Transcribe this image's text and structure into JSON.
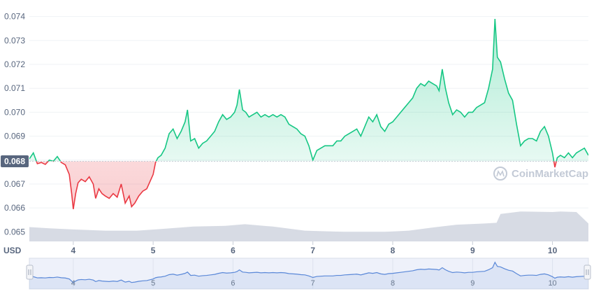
{
  "chart_data": {
    "type": "line",
    "unit_label": "USD",
    "current_price_label": "0.068",
    "current_price": 0.06795,
    "watermark": "CoinMarketCap",
    "yticks": [
      "0.065",
      "0.066",
      "0.067",
      "0.068",
      "0.069",
      "0.070",
      "0.071",
      "0.072",
      "0.073",
      "0.074"
    ],
    "ylim": [
      0.0646,
      0.0744
    ],
    "xticks": [
      "4",
      "5",
      "6",
      "7",
      "8",
      "9",
      "10"
    ],
    "xlim": [
      3.45,
      10.45
    ],
    "colors": {
      "up": "#16c784",
      "down": "#ea3943",
      "volume": "#d0d5df",
      "navigator": "#5a88d8"
    },
    "series": [
      {
        "values": [
          [
            3.45,
            0.06805
          ],
          [
            3.5,
            0.0683
          ],
          [
            3.55,
            0.06785
          ],
          [
            3.6,
            0.0679
          ],
          [
            3.65,
            0.06782
          ],
          [
            3.7,
            0.068
          ],
          [
            3.75,
            0.06795
          ],
          [
            3.8,
            0.06815
          ],
          [
            3.85,
            0.0679
          ],
          [
            3.9,
            0.0678
          ],
          [
            3.95,
            0.0674
          ],
          [
            3.98,
            0.0666
          ],
          [
            4.0,
            0.06595
          ],
          [
            4.03,
            0.0666
          ],
          [
            4.06,
            0.06705
          ],
          [
            4.1,
            0.0672
          ],
          [
            4.15,
            0.0671
          ],
          [
            4.2,
            0.0673
          ],
          [
            4.25,
            0.067
          ],
          [
            4.28,
            0.0664
          ],
          [
            4.32,
            0.0668
          ],
          [
            4.36,
            0.0666
          ],
          [
            4.4,
            0.0665
          ],
          [
            4.45,
            0.0664
          ],
          [
            4.5,
            0.0666
          ],
          [
            4.55,
            0.06645
          ],
          [
            4.6,
            0.067
          ],
          [
            4.65,
            0.0662
          ],
          [
            4.7,
            0.0665
          ],
          [
            4.73,
            0.06605
          ],
          [
            4.77,
            0.0662
          ],
          [
            4.82,
            0.0665
          ],
          [
            4.87,
            0.0667
          ],
          [
            4.92,
            0.0668
          ],
          [
            4.96,
            0.0671
          ],
          [
            5.0,
            0.0674
          ],
          [
            5.03,
            0.0679
          ],
          [
            5.06,
            0.0681
          ],
          [
            5.1,
            0.0682
          ],
          [
            5.15,
            0.0685
          ],
          [
            5.2,
            0.0691
          ],
          [
            5.25,
            0.0693
          ],
          [
            5.3,
            0.0689
          ],
          [
            5.35,
            0.0692
          ],
          [
            5.4,
            0.0696
          ],
          [
            5.43,
            0.0701
          ],
          [
            5.47,
            0.0688
          ],
          [
            5.52,
            0.0689
          ],
          [
            5.57,
            0.0685
          ],
          [
            5.62,
            0.0687
          ],
          [
            5.67,
            0.0688
          ],
          [
            5.72,
            0.069
          ],
          [
            5.77,
            0.0692
          ],
          [
            5.82,
            0.0696
          ],
          [
            5.87,
            0.0699
          ],
          [
            5.92,
            0.0697
          ],
          [
            5.97,
            0.0698
          ],
          [
            6.02,
            0.07
          ],
          [
            6.05,
            0.0703
          ],
          [
            6.08,
            0.07095
          ],
          [
            6.12,
            0.0701
          ],
          [
            6.16,
            0.07
          ],
          [
            6.2,
            0.0698
          ],
          [
            6.25,
            0.0699
          ],
          [
            6.3,
            0.07
          ],
          [
            6.35,
            0.0698
          ],
          [
            6.4,
            0.0699
          ],
          [
            6.45,
            0.0698
          ],
          [
            6.5,
            0.0699
          ],
          [
            6.55,
            0.0698
          ],
          [
            6.6,
            0.0699
          ],
          [
            6.65,
            0.0698
          ],
          [
            6.7,
            0.0695
          ],
          [
            6.75,
            0.0694
          ],
          [
            6.8,
            0.0693
          ],
          [
            6.85,
            0.0691
          ],
          [
            6.9,
            0.069
          ],
          [
            6.95,
            0.0686
          ],
          [
            7.0,
            0.068
          ],
          [
            7.05,
            0.0684
          ],
          [
            7.1,
            0.0685
          ],
          [
            7.15,
            0.0686
          ],
          [
            7.2,
            0.0686
          ],
          [
            7.25,
            0.0686
          ],
          [
            7.3,
            0.0688
          ],
          [
            7.35,
            0.0688
          ],
          [
            7.4,
            0.069
          ],
          [
            7.45,
            0.0691
          ],
          [
            7.5,
            0.0692
          ],
          [
            7.55,
            0.0693
          ],
          [
            7.6,
            0.069
          ],
          [
            7.65,
            0.0694
          ],
          [
            7.7,
            0.0698
          ],
          [
            7.75,
            0.0696
          ],
          [
            7.8,
            0.0699
          ],
          [
            7.85,
            0.0694
          ],
          [
            7.9,
            0.0692
          ],
          [
            7.95,
            0.0695
          ],
          [
            8.0,
            0.0696
          ],
          [
            8.05,
            0.0698
          ],
          [
            8.1,
            0.07
          ],
          [
            8.15,
            0.0702
          ],
          [
            8.2,
            0.0704
          ],
          [
            8.25,
            0.0706
          ],
          [
            8.3,
            0.071
          ],
          [
            8.35,
            0.0712
          ],
          [
            8.4,
            0.0711
          ],
          [
            8.45,
            0.0713
          ],
          [
            8.5,
            0.0712
          ],
          [
            8.55,
            0.0711
          ],
          [
            8.58,
            0.0709
          ],
          [
            8.62,
            0.0718
          ],
          [
            8.66,
            0.071
          ],
          [
            8.7,
            0.0704
          ],
          [
            8.75,
            0.0699
          ],
          [
            8.8,
            0.0701
          ],
          [
            8.85,
            0.07
          ],
          [
            8.9,
            0.0698
          ],
          [
            8.95,
            0.07
          ],
          [
            9.0,
            0.07
          ],
          [
            9.05,
            0.0702
          ],
          [
            9.1,
            0.0703
          ],
          [
            9.15,
            0.0704
          ],
          [
            9.2,
            0.071
          ],
          [
            9.25,
            0.0718
          ],
          [
            9.28,
            0.0739
          ],
          [
            9.31,
            0.0723
          ],
          [
            9.35,
            0.0721
          ],
          [
            9.4,
            0.0714
          ],
          [
            9.45,
            0.0708
          ],
          [
            9.5,
            0.0705
          ],
          [
            9.55,
            0.0695
          ],
          [
            9.6,
            0.0686
          ],
          [
            9.65,
            0.0688
          ],
          [
            9.7,
            0.0689
          ],
          [
            9.75,
            0.0689
          ],
          [
            9.8,
            0.0688
          ],
          [
            9.85,
            0.0692
          ],
          [
            9.9,
            0.0694
          ],
          [
            9.95,
            0.069
          ],
          [
            10.0,
            0.0683
          ],
          [
            10.03,
            0.0677
          ],
          [
            10.06,
            0.0681
          ],
          [
            10.1,
            0.0682
          ],
          [
            10.15,
            0.0681
          ],
          [
            10.2,
            0.0683
          ],
          [
            10.25,
            0.0681
          ],
          [
            10.3,
            0.0683
          ],
          [
            10.35,
            0.0684
          ],
          [
            10.4,
            0.0685
          ],
          [
            10.45,
            0.0682
          ]
        ]
      }
    ],
    "volume": [
      [
        3.45,
        0.0652
      ],
      [
        3.7,
        0.06515
      ],
      [
        4.0,
        0.0651
      ],
      [
        4.4,
        0.06505
      ],
      [
        4.8,
        0.06505
      ],
      [
        5.1,
        0.06512
      ],
      [
        5.5,
        0.06522
      ],
      [
        5.9,
        0.06525
      ],
      [
        6.15,
        0.06532
      ],
      [
        6.5,
        0.06522
      ],
      [
        6.9,
        0.06505
      ],
      [
        7.4,
        0.065
      ],
      [
        7.9,
        0.065
      ],
      [
        8.2,
        0.06505
      ],
      [
        8.5,
        0.06518
      ],
      [
        8.8,
        0.0653
      ],
      [
        9.15,
        0.06535
      ],
      [
        9.3,
        0.06538
      ],
      [
        9.35,
        0.06575
      ],
      [
        9.6,
        0.06585
      ],
      [
        10.0,
        0.06583
      ],
      [
        10.1,
        0.06585
      ],
      [
        10.3,
        0.06583
      ],
      [
        10.45,
        0.06535
      ]
    ]
  }
}
